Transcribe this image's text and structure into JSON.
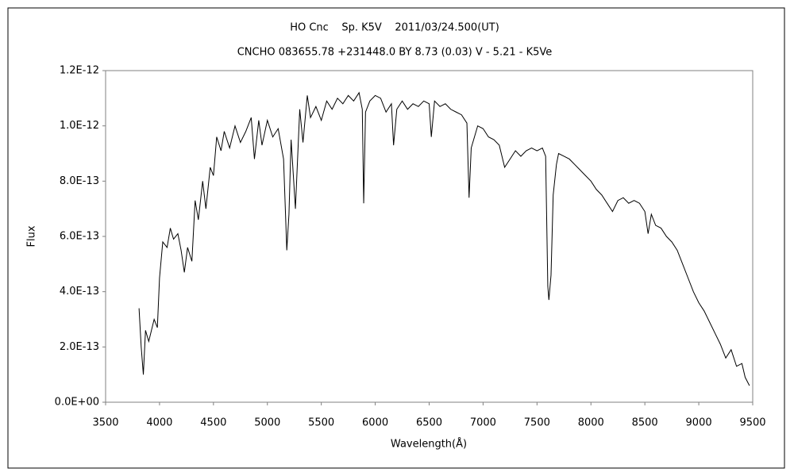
{
  "chart_data": {
    "type": "line",
    "title": "HO Cnc    Sp. K5V    2011/03/24.500(UT)",
    "subtitle": "CNCHO 083655.78 +231448.0 BY 8.73 (0.03) V - 5.21 - K5Ve",
    "x_label": "Wavelength(Å)",
    "y_label": "Flux",
    "xlim": [
      3500,
      9500
    ],
    "xticks": [
      3500,
      4000,
      4500,
      5000,
      5500,
      6000,
      6500,
      7000,
      7500,
      8000,
      8500,
      9000,
      9500
    ],
    "ylim": [
      0,
      1.2e-12
    ],
    "yticks": [
      {
        "value": 0,
        "label": "0.0E+00"
      },
      {
        "value": 2e-13,
        "label": "2.0E-13"
      },
      {
        "value": 4e-13,
        "label": "4.0E-13"
      },
      {
        "value": 6e-13,
        "label": "6.0E-13"
      },
      {
        "value": 8e-13,
        "label": "8.0E-13"
      },
      {
        "value": 1e-12,
        "label": "1.0E-12"
      },
      {
        "value": 1.2e-12,
        "label": "1.2E-12"
      }
    ],
    "grid": false,
    "color": "#000000",
    "x": [
      3810,
      3830,
      3850,
      3870,
      3900,
      3950,
      3980,
      4000,
      4030,
      4070,
      4100,
      4130,
      4170,
      4200,
      4230,
      4260,
      4300,
      4330,
      4360,
      4400,
      4430,
      4470,
      4500,
      4530,
      4570,
      4600,
      4650,
      4700,
      4750,
      4800,
      4850,
      4880,
      4920,
      4950,
      5000,
      5050,
      5100,
      5150,
      5180,
      5200,
      5220,
      5260,
      5300,
      5330,
      5370,
      5400,
      5450,
      5500,
      5550,
      5600,
      5650,
      5700,
      5750,
      5800,
      5850,
      5880,
      5893,
      5910,
      5950,
      6000,
      6050,
      6100,
      6150,
      6170,
      6200,
      6250,
      6300,
      6350,
      6400,
      6450,
      6500,
      6520,
      6550,
      6600,
      6650,
      6700,
      6750,
      6800,
      6850,
      6870,
      6890,
      6920,
      6950,
      7000,
      7050,
      7100,
      7150,
      7200,
      7250,
      7300,
      7350,
      7400,
      7450,
      7500,
      7550,
      7580,
      7600,
      7610,
      7630,
      7650,
      7680,
      7700,
      7750,
      7800,
      7850,
      7900,
      7950,
      8000,
      8050,
      8100,
      8150,
      8200,
      8250,
      8300,
      8350,
      8400,
      8450,
      8500,
      8530,
      8560,
      8600,
      8650,
      8700,
      8750,
      8800,
      8850,
      8900,
      8950,
      9000,
      9050,
      9100,
      9150,
      9200,
      9250,
      9300,
      9350,
      9400,
      9430,
      9470
    ],
    "values": [
      3.4e-13,
      2e-13,
      1e-13,
      2.6e-13,
      2.2e-13,
      3e-13,
      2.7e-13,
      4.5e-13,
      5.8e-13,
      5.6e-13,
      6.3e-13,
      5.9e-13,
      6.1e-13,
      5.5e-13,
      4.7e-13,
      5.6e-13,
      5.1e-13,
      7.3e-13,
      6.6e-13,
      8e-13,
      7e-13,
      8.5e-13,
      8.2e-13,
      9.6e-13,
      9.1e-13,
      9.8e-13,
      9.2e-13,
      1e-12,
      9.4e-13,
      9.8e-13,
      1.03e-12,
      8.8e-13,
      1.02e-12,
      9.3e-13,
      1.02e-12,
      9.6e-13,
      9.9e-13,
      8.8e-13,
      5.5e-13,
      6.8e-13,
      9.5e-13,
      7e-13,
      1.06e-12,
      9.4e-13,
      1.11e-12,
      1.03e-12,
      1.07e-12,
      1.02e-12,
      1.09e-12,
      1.06e-12,
      1.1e-12,
      1.08e-12,
      1.11e-12,
      1.09e-12,
      1.12e-12,
      1.06e-12,
      7.2e-13,
      1.05e-12,
      1.09e-12,
      1.11e-12,
      1.1e-12,
      1.05e-12,
      1.08e-12,
      9.3e-13,
      1.06e-12,
      1.09e-12,
      1.06e-12,
      1.08e-12,
      1.07e-12,
      1.09e-12,
      1.08e-12,
      9.6e-13,
      1.09e-12,
      1.07e-12,
      1.08e-12,
      1.06e-12,
      1.05e-12,
      1.04e-12,
      1.01e-12,
      7.4e-13,
      9.2e-13,
      9.6e-13,
      1e-12,
      9.9e-13,
      9.6e-13,
      9.5e-13,
      9.3e-13,
      8.5e-13,
      8.8e-13,
      9.1e-13,
      8.9e-13,
      9.1e-13,
      9.2e-13,
      9.1e-13,
      9.2e-13,
      8.9e-13,
      4.2e-13,
      3.7e-13,
      4.6e-13,
      7.5e-13,
      8.6e-13,
      9e-13,
      8.9e-13,
      8.8e-13,
      8.6e-13,
      8.4e-13,
      8.2e-13,
      8e-13,
      7.7e-13,
      7.5e-13,
      7.2e-13,
      6.9e-13,
      7.3e-13,
      7.4e-13,
      7.2e-13,
      7.3e-13,
      7.2e-13,
      6.9e-13,
      6.1e-13,
      6.8e-13,
      6.4e-13,
      6.3e-13,
      6e-13,
      5.8e-13,
      5.5e-13,
      5e-13,
      4.5e-13,
      4e-13,
      3.6e-13,
      3.3e-13,
      2.9e-13,
      2.5e-13,
      2.1e-13,
      1.6e-13,
      1.9e-13,
      1.3e-13,
      1.4e-13,
      9e-14,
      6e-14
    ]
  }
}
